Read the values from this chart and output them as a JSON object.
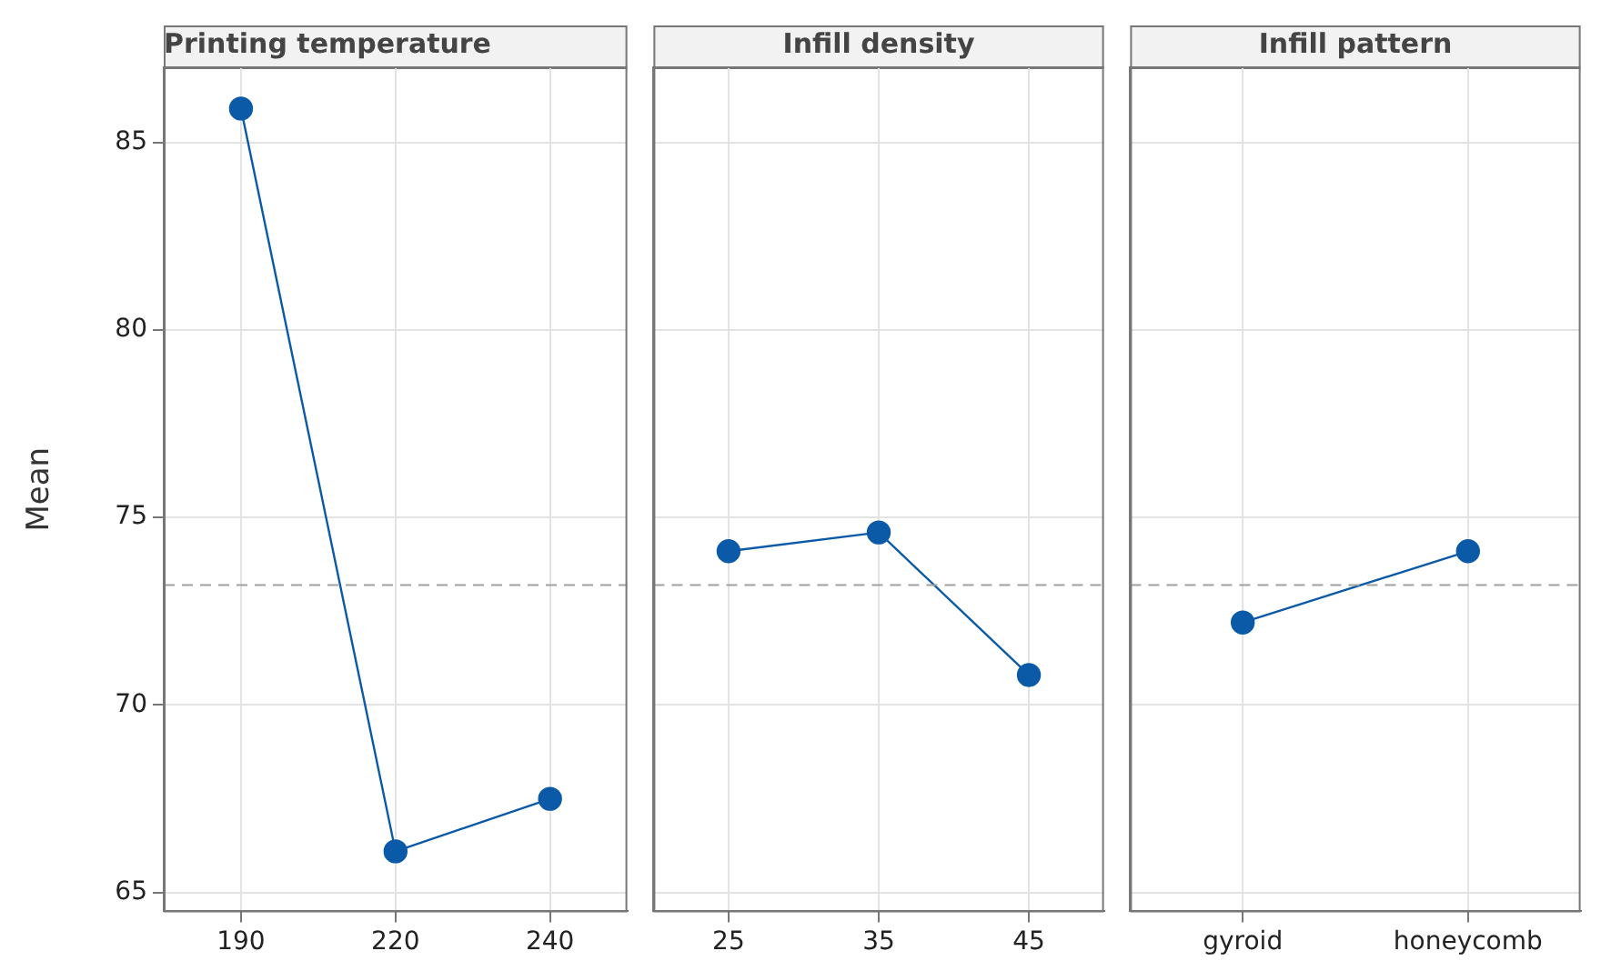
{
  "chart_data": [
    {
      "type": "line",
      "title": "Printing temperature",
      "ylabel": "Mean",
      "categories": [
        "190",
        "220",
        "240"
      ],
      "series": [
        {
          "color": "#0b5aa8",
          "values": [
            85.9,
            66.1,
            67.5
          ]
        }
      ],
      "ylim": [
        64.5,
        87
      ],
      "yticks": [
        65,
        70,
        75,
        80,
        85
      ],
      "grid": true,
      "marker": "circle",
      "line_style": "solid",
      "legend": false,
      "ref_lines": [
        {
          "axis": "y",
          "value": 73.2,
          "color": "#a0a0a0",
          "line_style": "dashed"
        }
      ]
    },
    {
      "type": "line",
      "title": "Infill density",
      "categories": [
        "25",
        "35",
        "45"
      ],
      "series": [
        {
          "color": "#0b5aa8",
          "values": [
            74.1,
            74.6,
            70.8
          ]
        }
      ],
      "ylim": [
        64.5,
        87
      ],
      "yticks": [
        65,
        70,
        75,
        80,
        85
      ],
      "grid": true,
      "marker": "circle",
      "line_style": "solid",
      "legend": false,
      "tick_labels": "x",
      "ref_lines": [
        {
          "axis": "y",
          "value": 73.2,
          "color": "#a0a0a0",
          "line_style": "dashed"
        }
      ]
    },
    {
      "type": "line",
      "title": "Infill pattern",
      "categories": [
        "gyroid",
        "honeycomb"
      ],
      "series": [
        {
          "color": "#0b5aa8",
          "values": [
            72.2,
            74.1
          ]
        }
      ],
      "ylim": [
        64.5,
        87
      ],
      "yticks": [
        65,
        70,
        75,
        80,
        85
      ],
      "grid": true,
      "marker": "circle",
      "line_style": "solid",
      "legend": false,
      "tick_labels": "x",
      "ref_lines": [
        {
          "axis": "y",
          "value": 73.2,
          "color": "#a0a0a0",
          "line_style": "dashed"
        }
      ]
    }
  ]
}
